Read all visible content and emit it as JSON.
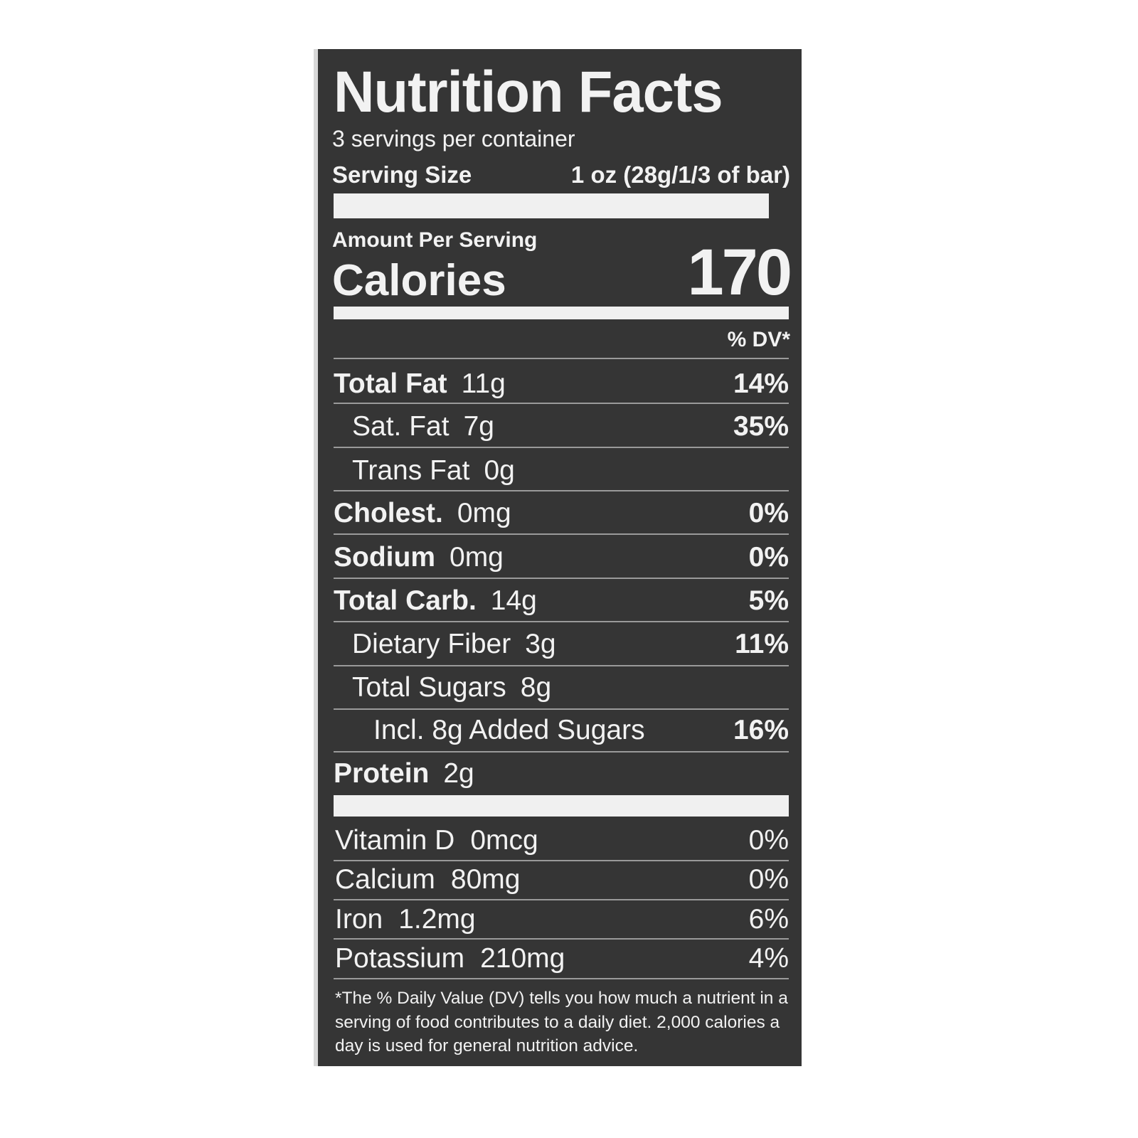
{
  "label": {
    "title": "Nutrition Facts",
    "servings_per_container": "3 servings per container",
    "serving_size_label": "Serving Size",
    "serving_size_value": "1 oz (28g/1/3 of bar)",
    "amount_per_serving": "Amount Per Serving",
    "calories_label": "Calories",
    "calories_value": "170",
    "dv_header": "% DV*",
    "nutrients": [
      {
        "name": "Total Fat",
        "amount": "11g",
        "dv": "14%",
        "bold": true,
        "indent": 0
      },
      {
        "name": "Sat. Fat",
        "amount": "7g",
        "dv": "35%",
        "bold": false,
        "indent": 1
      },
      {
        "name": "Trans Fat",
        "amount": "0g",
        "dv": "",
        "bold": false,
        "indent": 1
      },
      {
        "name": "Cholest.",
        "amount": "0mg",
        "dv": "0%",
        "bold": true,
        "indent": 0
      },
      {
        "name": "Sodium",
        "amount": "0mg",
        "dv": "0%",
        "bold": true,
        "indent": 0
      },
      {
        "name": "Total Carb.",
        "amount": "14g",
        "dv": "5%",
        "bold": true,
        "indent": 0
      },
      {
        "name": "Dietary Fiber",
        "amount": "3g",
        "dv": "11%",
        "bold": false,
        "indent": 1
      },
      {
        "name": "Total Sugars",
        "amount": "8g",
        "dv": "",
        "bold": false,
        "indent": 1
      },
      {
        "name": "Incl. 8g Added Sugars",
        "amount": "",
        "dv": "16%",
        "bold": false,
        "indent": 2
      },
      {
        "name": "Protein",
        "amount": "2g",
        "dv": "",
        "bold": true,
        "indent": 0
      }
    ],
    "vitamins": [
      {
        "name": "Vitamin D",
        "amount": "0mcg",
        "dv": "0%"
      },
      {
        "name": "Calcium",
        "amount": "80mg",
        "dv": "0%"
      },
      {
        "name": "Iron",
        "amount": "1.2mg",
        "dv": "6%"
      },
      {
        "name": "Potassium",
        "amount": "210mg",
        "dv": "4%"
      }
    ],
    "footnote": "*The % Daily Value (DV) tells you how much a nutrient in a serving of food contributes to a daily diet. 2,000 calories a day is used for general nutrition advice."
  },
  "colors": {
    "panel": "#353535",
    "text": "#f2f2f2",
    "background": "#ffffff"
  }
}
